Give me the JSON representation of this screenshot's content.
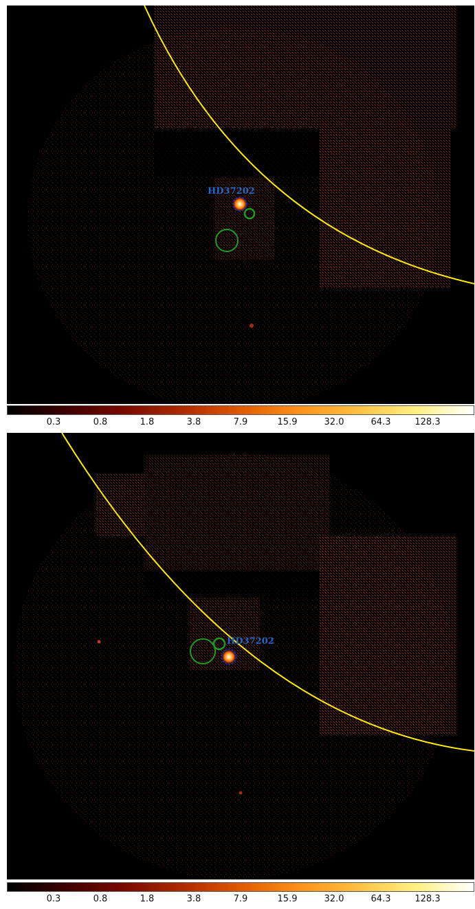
{
  "panels": [
    {
      "source_label": "HD37202",
      "colorbar": {
        "ticks": [
          "0.3",
          "0.8",
          "1.8",
          "3.8",
          "7.9",
          "15.9",
          "32.0",
          "64.3",
          "128.3"
        ]
      }
    },
    {
      "source_label": "HD37202",
      "colorbar": {
        "ticks": [
          "0.3",
          "0.8",
          "1.8",
          "3.8",
          "7.9",
          "15.9",
          "32.0",
          "64.3",
          "128.3"
        ]
      }
    }
  ],
  "colors": {
    "background": "#000000",
    "noise": "#8a1a08",
    "boundary_line": "#ffee00",
    "source_region": "#1a2ee0",
    "background_regions": "#1b9e1b",
    "label": "#2468c8"
  },
  "colormap": [
    "#000000",
    "#3d0000",
    "#7a0a00",
    "#b02a00",
    "#e05a00",
    "#ff9018",
    "#ffc040",
    "#fff080",
    "#ffffff"
  ]
}
